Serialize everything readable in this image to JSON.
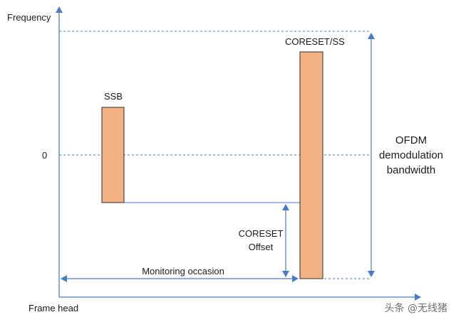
{
  "labels": {
    "frequency": "Frequency",
    "zero": "0",
    "frame_head": "Frame head",
    "ssb": "SSB",
    "coreset_ss": "CORESET/SS",
    "coreset_offset_line1": "CORESET",
    "coreset_offset_line2": "Offset",
    "monitoring_occasion": "Monitoring occasion",
    "ofdm_line1": "OFDM",
    "ofdm_line2": "demodulation",
    "ofdm_line3": "bandwidth"
  },
  "watermark": "头条 @无线猪",
  "colors": {
    "axis": "#4a7cc7",
    "block_fill": "#f4b183",
    "block_stroke": "#2b2b2b",
    "text": "#1a1a1a"
  }
}
